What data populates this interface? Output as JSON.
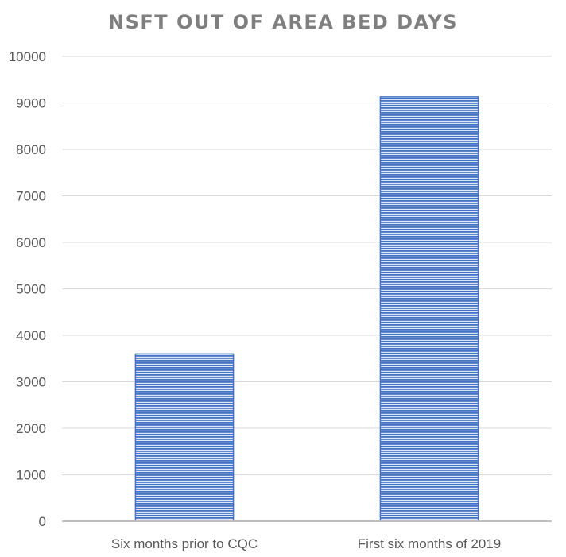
{
  "chart_data": {
    "type": "bar",
    "title": "NSFT OUT OF AREA BED DAYS",
    "categories": [
      "Six months prior to CQC",
      "First six months of 2019"
    ],
    "values": [
      3600,
      9130
    ],
    "ylim": [
      0,
      10000
    ],
    "yticks": [
      0,
      1000,
      2000,
      3000,
      4000,
      5000,
      6000,
      7000,
      8000,
      9000,
      10000
    ],
    "grid": true,
    "legend": "none",
    "bar_color": "#4472c4",
    "bar_pattern": "horizontal-stripes"
  }
}
